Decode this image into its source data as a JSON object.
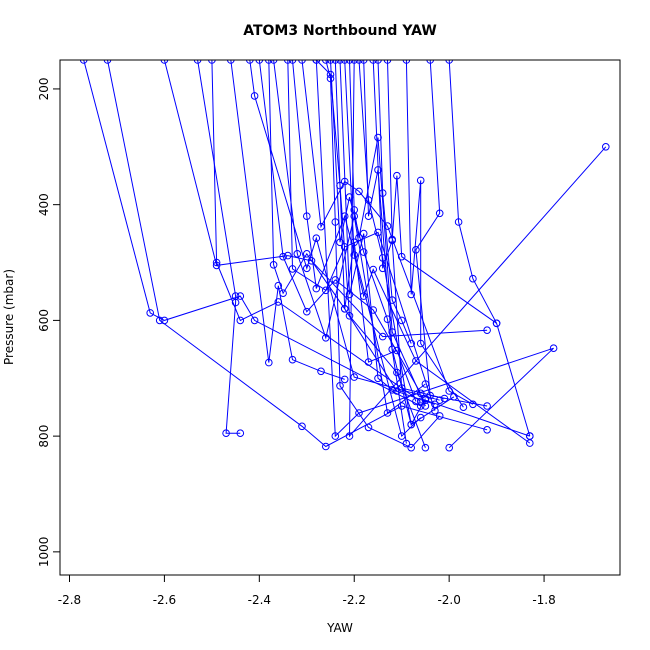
{
  "chart_data": {
    "type": "line",
    "title": "ATOM3 Northbound YAW",
    "xlabel": "YAW",
    "ylabel": "Pressure (mbar)",
    "xlim": [
      -2.82,
      -1.64
    ],
    "ylim": [
      1040,
      150
    ],
    "y_reversed": true,
    "xticks": [
      -2.8,
      -2.6,
      -2.4,
      -2.2,
      -2.0,
      -1.8
    ],
    "xtick_labels": [
      "-2.8",
      "-2.6",
      "-2.4",
      "-2.2",
      "-2.0",
      "-1.8"
    ],
    "yticks": [
      200,
      400,
      600,
      800,
      1000
    ],
    "ytick_labels": [
      "200",
      "400",
      "600",
      "800",
      "1000"
    ],
    "series_color": "#0000ff",
    "marker": "open-circle",
    "grid": false,
    "series": [
      {
        "x": [
          -2.77,
          -2.63,
          -2.6,
          -2.44,
          -2.41,
          -2.06,
          -2.05,
          -1.83
        ],
        "y": [
          150,
          587,
          600,
          558,
          600,
          748,
          738,
          800
        ]
      },
      {
        "x": [
          -2.72,
          -2.61,
          -2.31,
          -2.26,
          -2.1,
          -1.92
        ],
        "y": [
          150,
          600,
          783,
          818,
          748,
          789
        ]
      },
      {
        "x": [
          -2.6,
          -2.49,
          -2.34,
          -2.29,
          -2.14,
          -1.92
        ],
        "y": [
          150,
          505,
          488,
          497,
          628,
          617
        ]
      },
      {
        "x": [
          -2.53,
          -2.45,
          -2.45,
          -2.47,
          -2.44
        ],
        "y": [
          150,
          558,
          569,
          795,
          795
        ]
      },
      {
        "x": [
          -2.5,
          -2.49,
          -2.44,
          -2.36,
          -2.06
        ],
        "y": [
          150,
          500,
          600,
          568,
          740
        ]
      },
      {
        "x": [
          -2.46,
          -2.38,
          -2.36,
          -2.33,
          -2.27,
          -2.22
        ],
        "y": [
          150,
          673,
          540,
          668,
          688,
          702
        ]
      },
      {
        "x": [
          -2.42,
          -2.41,
          -2.3,
          -2.28,
          -2.2,
          -2.02
        ],
        "y": [
          150,
          212,
          510,
          458,
          698,
          738
        ]
      },
      {
        "x": [
          -2.38,
          -2.37,
          -2.35,
          -2.3,
          -2.22,
          -2.11
        ],
        "y": [
          150,
          504,
          553,
          485,
          580,
          722
        ]
      },
      {
        "x": [
          -2.34,
          -2.33,
          -2.26,
          -2.22,
          -2.15,
          -2.03
        ],
        "y": [
          150,
          511,
          548,
          473,
          448,
          756
        ]
      },
      {
        "x": [
          -2.31,
          -2.27,
          -2.22,
          -2.19,
          -2.13,
          -2.0,
          -1.95
        ],
        "y": [
          150,
          438,
          360,
          377,
          437,
          722,
          745
        ]
      },
      {
        "x": [
          -2.28,
          -2.25,
          -2.23,
          -2.21,
          -2.11,
          -2.05
        ],
        "y": [
          150,
          175,
          367,
          592,
          690,
          820
        ]
      },
      {
        "x": [
          -2.25,
          -2.23,
          -2.21,
          -2.18,
          -2.13,
          -2.09
        ],
        "y": [
          150,
          465,
          387,
          482,
          598,
          813
        ]
      },
      {
        "x": [
          -2.22,
          -2.2,
          -2.18,
          -2.16,
          -2.07,
          -1.83
        ],
        "y": [
          150,
          487,
          558,
          512,
          670,
          812
        ]
      },
      {
        "x": [
          -2.19,
          -2.17,
          -2.14,
          -2.08,
          -1.99
        ],
        "y": [
          150,
          392,
          492,
          780,
          732
        ]
      },
      {
        "x": [
          -2.16,
          -2.14,
          -2.12,
          -2.1,
          -2.01
        ],
        "y": [
          150,
          510,
          462,
          717,
          735
        ]
      },
      {
        "x": [
          -2.13,
          -2.12,
          -2.11,
          -2.1,
          -1.9
        ],
        "y": [
          150,
          460,
          350,
          490,
          605
        ]
      },
      {
        "x": [
          -2.09,
          -2.08,
          -2.06,
          -2.06,
          -1.97
        ],
        "y": [
          150,
          555,
          358,
          640,
          750
        ]
      },
      {
        "x": [
          -2.04,
          -2.02,
          -2.07,
          -2.04,
          -1.92
        ],
        "y": [
          150,
          415,
          478,
          730,
          748
        ]
      },
      {
        "x": [
          -2.0,
          -1.98,
          -1.95,
          -1.9,
          -1.83
        ],
        "y": [
          150,
          430,
          528,
          605,
          800
        ]
      },
      {
        "x": [
          -2.2,
          -2.21,
          -1.67
        ],
        "y": [
          150,
          800,
          300
        ]
      },
      {
        "x": [
          -2.28,
          -2.24,
          -2.19,
          -1.78,
          -2.0
        ],
        "y": [
          150,
          800,
          760,
          648,
          820
        ]
      },
      {
        "x": [
          -2.26,
          -2.25,
          -2.24,
          -2.23,
          -2.17,
          -2.08,
          -2.02
        ],
        "y": [
          150,
          182,
          430,
          713,
          785,
          820,
          765
        ]
      },
      {
        "x": [
          -2.33,
          -2.3,
          -2.28,
          -2.22,
          -2.1,
          -2.06
        ],
        "y": [
          150,
          420,
          545,
          420,
          800,
          768
        ]
      },
      {
        "x": [
          -2.37,
          -2.32,
          -2.26,
          -2.2,
          -2.13,
          -2.05
        ],
        "y": [
          150,
          485,
          630,
          420,
          760,
          710
        ]
      },
      {
        "x": [
          -2.4,
          -2.35,
          -2.3,
          -2.24,
          -2.16,
          -2.06
        ],
        "y": [
          150,
          490,
          585,
          530,
          582,
          726
        ]
      },
      {
        "x": [
          -2.21,
          -2.2,
          -2.19,
          -2.15,
          -2.12,
          -2.05
        ],
        "y": [
          150,
          409,
          457,
          284,
          620,
          748
        ]
      },
      {
        "x": [
          -2.18,
          -2.17,
          -2.15,
          -2.12,
          -2.08,
          -2.05
        ],
        "y": [
          150,
          420,
          340,
          650,
          780,
          735
        ]
      },
      {
        "x": [
          -2.24,
          -2.22,
          -2.2,
          -2.17,
          -2.11,
          -2.07
        ],
        "y": [
          150,
          580,
          465,
          672,
          652,
          740
        ]
      },
      {
        "x": [
          -2.15,
          -2.14,
          -2.12,
          -2.1,
          -2.08
        ],
        "y": [
          150,
          380,
          565,
          600,
          640
        ]
      },
      {
        "x": [
          -2.23,
          -2.21,
          -2.18,
          -2.15,
          -2.12,
          -2.03
        ],
        "y": [
          150,
          555,
          450,
          700,
          720,
          745
        ]
      }
    ]
  }
}
